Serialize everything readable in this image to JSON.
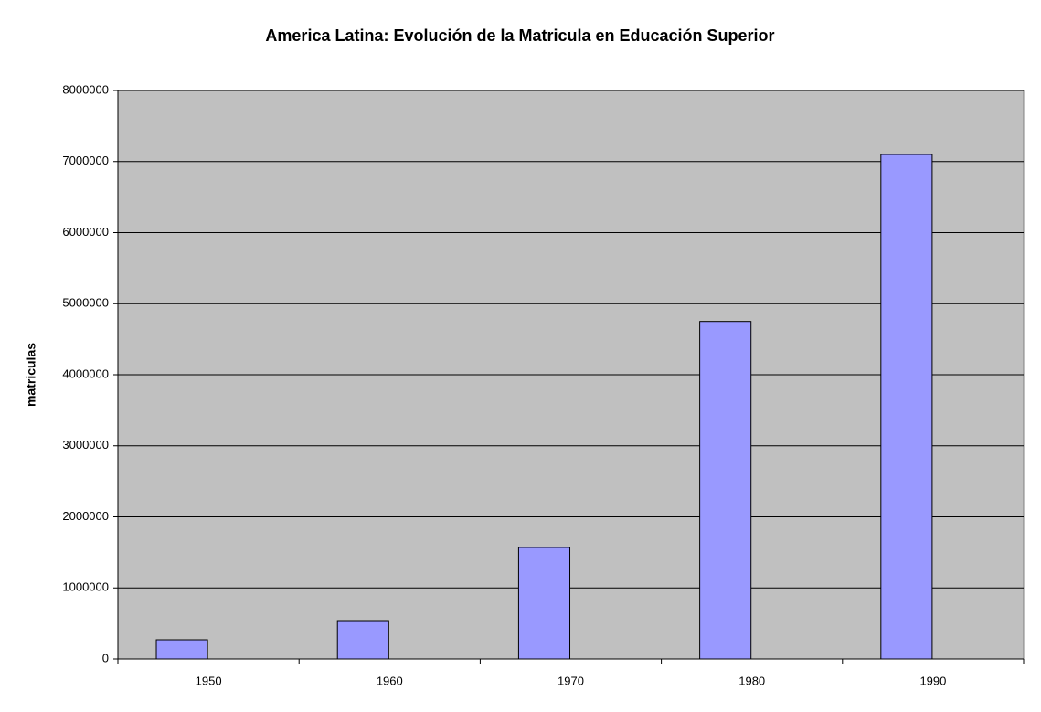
{
  "chart_data": {
    "type": "bar",
    "title": "America Latina: Evolución de la Matricula en Educación Superior",
    "ylabel": "matriculas",
    "categories": [
      "1950",
      "1960",
      "1970",
      "1980",
      "1990"
    ],
    "values": [
      270000,
      540000,
      1570000,
      4750000,
      7100000
    ],
    "color": "#9999ff",
    "ylim": [
      0,
      8000000
    ],
    "yticks": [
      0,
      1000000,
      2000000,
      3000000,
      4000000,
      5000000,
      6000000,
      7000000,
      8000000
    ],
    "grid": true
  }
}
